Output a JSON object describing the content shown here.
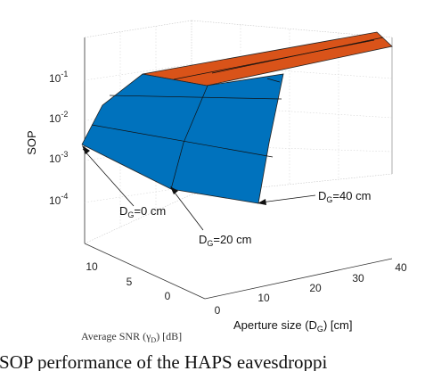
{
  "chart_data": {
    "type": "surface",
    "zlabel": "SOP",
    "xlabel": "Aperture size (D",
    "xlabel_sub": "G",
    "xlabel_end": ") [cm]",
    "ylabel": "Average SNR (γ",
    "ylabel_sub": "D",
    "ylabel_end": ") [dB]",
    "x_ticks": [
      "0",
      "10",
      "20",
      "30",
      "40"
    ],
    "y_ticks": [
      "0",
      "5",
      "10"
    ],
    "z_ticks": [
      {
        "base": "10",
        "exp": "-1"
      },
      {
        "base": "10",
        "exp": "-2"
      },
      {
        "base": "10",
        "exp": "-3"
      },
      {
        "base": "10",
        "exp": "-4"
      }
    ],
    "z_scale": "log",
    "grid": true,
    "colors": {
      "blue": "#0072BD",
      "orange": "#D95319"
    },
    "annotations": [
      {
        "pre": "D",
        "sub": "G",
        "post": "=0 cm"
      },
      {
        "pre": "D",
        "sub": "G",
        "post": "=20 cm"
      },
      {
        "pre": "D",
        "sub": "G",
        "post": "=40 cm"
      }
    ]
  },
  "caption": "SOP performance of the HAPS eavesdroppi"
}
